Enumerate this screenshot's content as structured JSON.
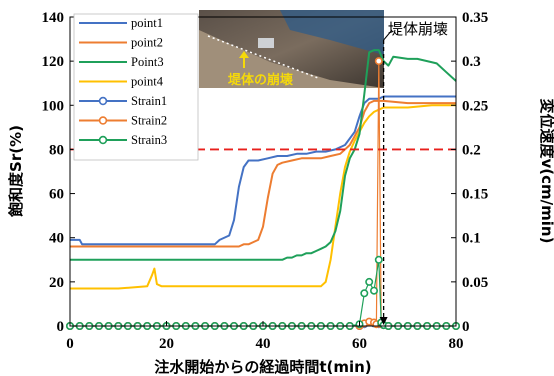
{
  "chart_data": {
    "type": "line",
    "title": "",
    "xlabel": "注水開始からの経過時間t(min)",
    "ylabel_left": "飽和度Sr(%)",
    "ylabel_right": "変位速度v(cm/min)",
    "xlim": [
      0,
      80
    ],
    "ylim_left": [
      0,
      140
    ],
    "ylim_right": [
      0,
      0.35
    ],
    "x_ticks": [
      "0",
      "20",
      "40",
      "60",
      "80"
    ],
    "y_left_ticks": [
      "0",
      "20",
      "40",
      "60",
      "80",
      "100",
      "120",
      "140"
    ],
    "y_right_ticks": [
      "0",
      "0.05",
      "0.1",
      "0.15",
      "0.2",
      "0.25",
      "0.3",
      "0.35"
    ],
    "grid": false,
    "legend_position": "top-left",
    "threshold_line": {
      "axis": "right",
      "value": 0.2,
      "color": "#e8201c"
    },
    "annotations": {
      "collapse_label": "堤体崩壊",
      "collapse_time": 65,
      "photo_caption": "堤体の崩壊"
    },
    "series": [
      {
        "name": "point1",
        "axis": "left",
        "color": "#4472c4",
        "marker": false,
        "x": [
          0,
          2,
          2.5,
          30,
          31,
          33,
          34,
          35,
          36,
          37,
          39,
          41,
          43,
          45,
          47,
          49,
          51,
          53,
          55,
          57,
          59,
          60,
          61,
          62,
          63,
          64,
          65,
          70,
          75,
          80
        ],
        "y": [
          39,
          39,
          37,
          37,
          39,
          41,
          48,
          63,
          72,
          75,
          75,
          76,
          77,
          77,
          78,
          78,
          79,
          79,
          80,
          82,
          88,
          95,
          101,
          103,
          103,
          103,
          104,
          104,
          104,
          104
        ]
      },
      {
        "name": "point2",
        "axis": "left",
        "color": "#ed7d31",
        "marker": false,
        "x": [
          0,
          35,
          36,
          37,
          38,
          39,
          40,
          41,
          42,
          43,
          44,
          46,
          48,
          50,
          52,
          54,
          56,
          58,
          60,
          61,
          62,
          63,
          64,
          65,
          70,
          75,
          80
        ],
        "y": [
          36,
          36,
          37,
          37,
          38,
          39,
          45,
          58,
          69,
          73,
          74,
          75,
          76,
          76,
          76,
          77,
          78,
          82,
          90,
          97,
          101,
          102,
          102,
          102,
          101,
          101,
          101
        ]
      },
      {
        "name": "Point3",
        "axis": "left",
        "color": "#1fa05a",
        "marker": false,
        "x": [
          0,
          44,
          45,
          46,
          47,
          48,
          49,
          50,
          51,
          52,
          53,
          54,
          55,
          56,
          57,
          58,
          59,
          60,
          61,
          62,
          63,
          64,
          65,
          66,
          67,
          70,
          72,
          74,
          76,
          78,
          80
        ],
        "y": [
          30,
          30,
          31,
          31,
          32,
          32,
          33,
          33,
          34,
          35,
          36,
          38,
          43,
          52,
          68,
          76,
          80,
          87,
          105,
          124,
          125,
          125,
          120,
          118,
          122,
          121,
          121,
          120,
          119,
          115,
          111
        ]
      },
      {
        "name": "point4",
        "axis": "left",
        "color": "#ffc000",
        "marker": false,
        "x": [
          0,
          10,
          16,
          17,
          17.5,
          18,
          19,
          20,
          30,
          40,
          50,
          52,
          53,
          54,
          55,
          56,
          57,
          58,
          59,
          60,
          61,
          62,
          63,
          64,
          65,
          70,
          75,
          80
        ],
        "y": [
          17,
          17,
          18,
          23,
          26,
          19,
          18,
          18,
          18,
          18,
          18,
          18,
          20,
          30,
          45,
          60,
          72,
          79,
          84,
          88,
          92,
          95,
          97,
          98,
          99,
          99,
          100,
          100
        ]
      },
      {
        "name": "Strain1",
        "axis": "right",
        "color": "#4472c4",
        "marker": true,
        "x": [
          0,
          2,
          4,
          6,
          8,
          10,
          12,
          14,
          16,
          18,
          20,
          22,
          24,
          26,
          28,
          30,
          32,
          34,
          36,
          38,
          40,
          42,
          44,
          46,
          48,
          50,
          52,
          54,
          56,
          58,
          60,
          61,
          62,
          63,
          64,
          65,
          66,
          68,
          70,
          72,
          74,
          76,
          78,
          80
        ],
        "y": [
          0,
          0,
          0,
          0,
          0,
          0,
          0,
          0,
          0,
          0,
          0,
          0,
          0,
          0,
          0,
          0,
          0,
          0,
          0,
          0,
          0,
          0,
          0,
          0,
          0,
          0,
          0,
          0,
          0,
          0,
          0,
          0.002,
          0.004,
          0.003,
          0.002,
          0.001,
          0,
          0,
          0,
          0,
          0,
          0,
          0,
          0
        ]
      },
      {
        "name": "Strain2",
        "axis": "right",
        "color": "#ed7d31",
        "marker": true,
        "x": [
          0,
          2,
          4,
          6,
          8,
          10,
          12,
          14,
          16,
          18,
          20,
          22,
          24,
          26,
          28,
          30,
          32,
          34,
          36,
          38,
          40,
          42,
          44,
          46,
          48,
          50,
          52,
          54,
          56,
          58,
          60,
          61,
          62,
          63,
          63.5,
          64,
          64.5,
          65,
          66,
          68,
          70,
          72,
          74,
          76,
          78,
          80
        ],
        "y": [
          0,
          0,
          0,
          0,
          0,
          0,
          0,
          0,
          0,
          0,
          0,
          0,
          0,
          0,
          0,
          0,
          0,
          0,
          0,
          0,
          0,
          0,
          0,
          0,
          0,
          0,
          0,
          0,
          0,
          0,
          0,
          0.003,
          0.005,
          0.004,
          0.002,
          0.3,
          0.002,
          0.001,
          0,
          0,
          0,
          0,
          0,
          0,
          0,
          0
        ]
      },
      {
        "name": "Strain3",
        "axis": "right",
        "color": "#1fa05a",
        "marker": true,
        "x": [
          0,
          2,
          4,
          6,
          8,
          10,
          12,
          14,
          16,
          18,
          20,
          22,
          24,
          26,
          28,
          30,
          32,
          34,
          36,
          38,
          40,
          42,
          44,
          46,
          48,
          50,
          52,
          54,
          56,
          58,
          60,
          61,
          62,
          63,
          64,
          64.5,
          65,
          66,
          68,
          70,
          72,
          74,
          76,
          78,
          80
        ],
        "y": [
          0,
          0,
          0,
          0,
          0,
          0,
          0,
          0,
          0,
          0,
          0,
          0,
          0,
          0,
          0,
          0,
          0,
          0,
          0,
          0,
          0,
          0,
          0,
          0,
          0,
          0,
          0,
          0,
          0,
          0,
          0.002,
          0.037,
          0.05,
          0.04,
          0.075,
          0.004,
          0.001,
          0,
          0,
          0,
          0,
          0,
          0,
          0,
          0
        ]
      }
    ]
  }
}
